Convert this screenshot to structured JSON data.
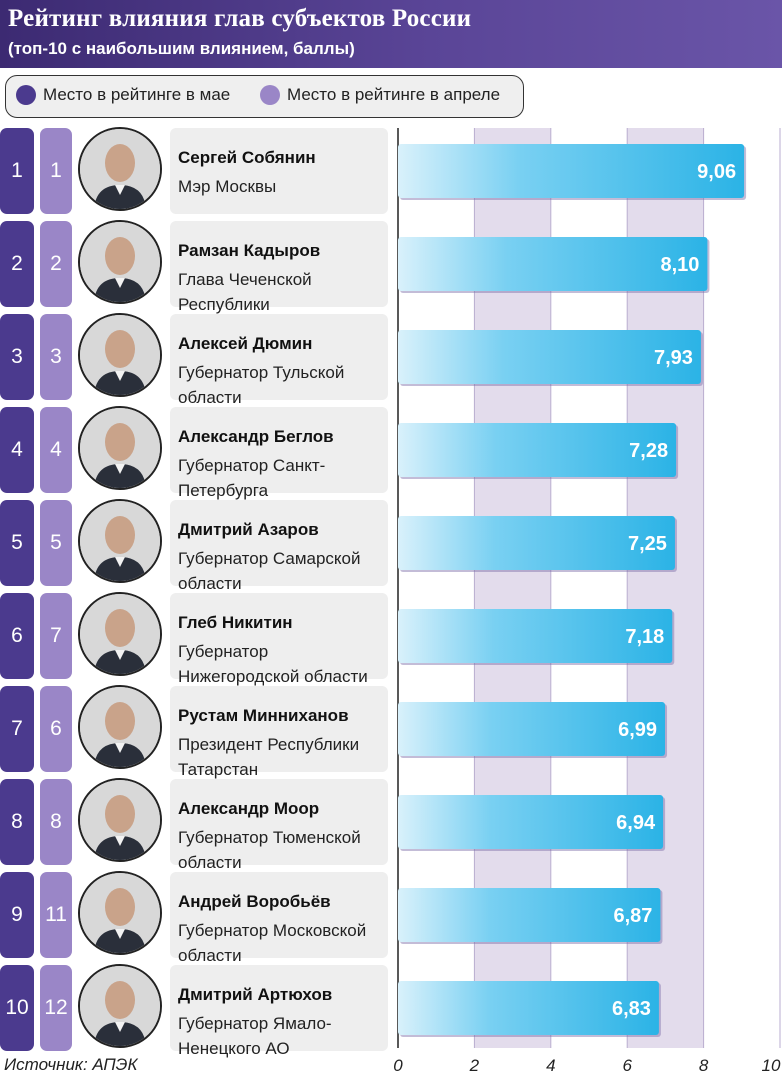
{
  "header": {
    "title": "Рейтинг влияния глав субъектов России",
    "subtitle": "(топ-10 с наибольшим влиянием, баллы)"
  },
  "legend": [
    {
      "label": "Место в рейтинге в мае",
      "color": "#4b3a8e"
    },
    {
      "label": "Место в рейтинге в апреле",
      "color": "#9a86c7"
    }
  ],
  "rows": [
    {
      "rank_may": "1",
      "rank_apr": "1",
      "name": "Сергей Собянин",
      "position": "Мэр Москвы"
    },
    {
      "rank_may": "2",
      "rank_apr": "2",
      "name": "Рамзан Кадыров",
      "position": "Глава Чеченской Республики"
    },
    {
      "rank_may": "3",
      "rank_apr": "3",
      "name": "Алексей Дюмин",
      "position": "Губернатор Тульской области"
    },
    {
      "rank_may": "4",
      "rank_apr": "4",
      "name": "Александр Беглов",
      "position": "Губернатор Санкт-Петербурга"
    },
    {
      "rank_may": "5",
      "rank_apr": "5",
      "name": "Дмитрий Азаров",
      "position": "Губернатор Самарской области"
    },
    {
      "rank_may": "6",
      "rank_apr": "7",
      "name": "Глеб Никитин",
      "position": "Губернатор Нижегородской области"
    },
    {
      "rank_may": "7",
      "rank_apr": "6",
      "name": "Рустам Минниханов",
      "position": "Президент Республики Татарстан"
    },
    {
      "rank_may": "8",
      "rank_apr": "8",
      "name": "Александр Моор",
      "position": "Губернатор Тюменской области"
    },
    {
      "rank_may": "9",
      "rank_apr": "11",
      "name": "Андрей Воробьёв",
      "position": "Губернатор Московской области"
    },
    {
      "rank_may": "10",
      "rank_apr": "12",
      "name": "Дмитрий Артюхов",
      "position": "Губернатор Ямало-Ненецкого АО"
    }
  ],
  "chart_data": {
    "type": "bar",
    "orientation": "horizontal",
    "title": "Рейтинг влияния глав субъектов России",
    "subtitle": "(топ-10 с наибольшим влиянием, баллы)",
    "categories": [
      "Сергей Собянин",
      "Рамзан Кадыров",
      "Алексей Дюмин",
      "Александр Беглов",
      "Дмитрий Азаров",
      "Глеб Никитин",
      "Рустам Минниханов",
      "Александр Моор",
      "Андрей Воробьёв",
      "Дмитрий Артюхов"
    ],
    "values": [
      9.06,
      8.1,
      7.93,
      7.28,
      7.25,
      7.18,
      6.99,
      6.94,
      6.87,
      6.83
    ],
    "value_labels": [
      "9,06",
      "8,10",
      "7,93",
      "7,28",
      "7,25",
      "7,18",
      "6,99",
      "6,94",
      "6,87",
      "6,83"
    ],
    "xlim": [
      0,
      10
    ],
    "xticks": [
      "0",
      "2",
      "4",
      "6",
      "8",
      "10"
    ],
    "bar_color": "#2bb3e6",
    "band_colors": [
      "#ffffff",
      "#e3dcec"
    ]
  },
  "source": "Источник: АПЭК"
}
